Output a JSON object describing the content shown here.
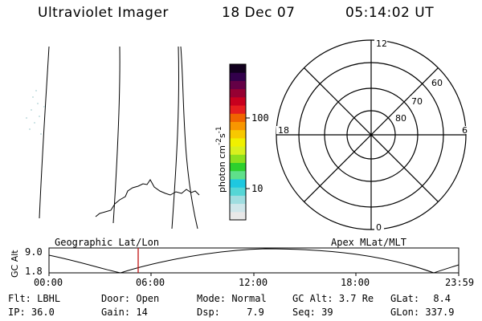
{
  "header": {
    "instrument": "Ultraviolet Imager",
    "date": "18 Dec 07",
    "time": "05:14:02 UT"
  },
  "colorbar": {
    "unit_label": "photon cm",
    "unit_exp1": "-2",
    "unit_s": "s",
    "unit_exp2": "-1",
    "tick_high": "100",
    "tick_low": "10",
    "colors": [
      "#e8e8e8",
      "#cfe6ea",
      "#9fdde0",
      "#55d6d6",
      "#1ec8e0",
      "#5fe08a",
      "#2dd02d",
      "#8ce01e",
      "#d8f01e",
      "#f0f000",
      "#f8c800",
      "#f89600",
      "#f06400",
      "#e61e1e",
      "#c8001e",
      "#960032",
      "#640046",
      "#32004b",
      "#12001e"
    ]
  },
  "polar_plot": {
    "mlt_labels": [
      "12",
      "18",
      "6",
      "0"
    ],
    "lat_labels": [
      "60",
      "70",
      "80"
    ]
  },
  "alt_panel": {
    "left_label": "Geographic Lat/Lon",
    "right_label": "Apex MLat/MLT",
    "ylabel": "GC Alt",
    "y_top": "9.0",
    "y_bottom": "1.8",
    "x_ticks": [
      "00:00",
      "06:00",
      "12:00",
      "18:00",
      "23:59"
    ]
  },
  "status": {
    "row1": [
      {
        "key": "Flt:",
        "value": "LBHL"
      },
      {
        "key": "Door:",
        "value": "Open"
      },
      {
        "key": "Mode:",
        "value": "Normal"
      },
      {
        "key": "GC Alt:",
        "value": "3.7 Re"
      },
      {
        "key": "GLat:",
        "value": "8.4"
      }
    ],
    "row2": [
      {
        "key": "IP:",
        "value": "36.0"
      },
      {
        "key": "Gain:",
        "value": "14"
      },
      {
        "key": "Dsp:",
        "value": "7.9"
      },
      {
        "key": "Seq:",
        "value": "39"
      },
      {
        "key": "GLon:",
        "value": "337.9"
      }
    ]
  }
}
